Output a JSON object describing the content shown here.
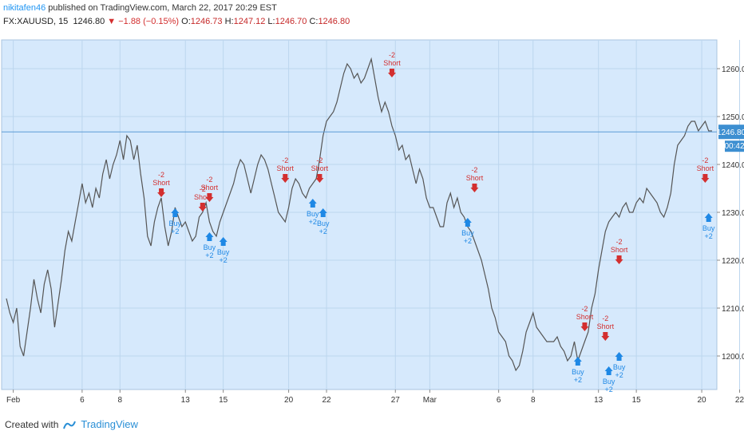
{
  "header": {
    "author": "nikitafen46",
    "published_text": "published on TradingView.com, March 22, 2017 20:29 EST"
  },
  "ticker": {
    "symbol": "FX:XAUUSD, 15",
    "last": "1246.80",
    "change": "−1.88",
    "change_pct": "(−0.15%)",
    "open_label": "O:",
    "open": "1246.73",
    "high_label": "H:",
    "high": "1247.12",
    "low_label": "L:",
    "low": "1246.70",
    "close_label": "C:",
    "close": "1246.80"
  },
  "price_badge": {
    "value": "1246.80",
    "countdown": "00:42"
  },
  "footer": {
    "created_with": "Created with",
    "brand": "TradingView"
  },
  "colors": {
    "plot_bg": "#d6e9fc",
    "grid": "#bcd6ee",
    "candle": "#555555",
    "short": "#d32f2f",
    "buy": "#1e88e5",
    "price_line": "#5b9bd5",
    "badge": "#3d8fd1"
  },
  "chart_data": {
    "type": "line",
    "ylim": [
      1193,
      1266
    ],
    "y_ticks": [
      "1200.00",
      "1210.00",
      "1220.00",
      "1230.00",
      "1240.00",
      "1250.00",
      "1260.00"
    ],
    "y_tick_values": [
      1200,
      1210,
      1220,
      1230,
      1240,
      1250,
      1260
    ],
    "x_ticks": [
      "Feb",
      "6",
      "8",
      "13",
      "15",
      "20",
      "22",
      "27",
      "Mar",
      "6",
      "8",
      "13",
      "15",
      "20",
      "22"
    ],
    "x_tick_index": [
      2,
      22,
      33,
      52,
      63,
      82,
      93,
      113,
      123,
      143,
      153,
      172,
      183,
      202,
      213
    ],
    "last_price": 1246.8,
    "series": [
      {
        "values": [
          1212,
          1209,
          1207,
          1210,
          1202,
          1200,
          1205,
          1210,
          1216,
          1212,
          1209,
          1215,
          1218,
          1214,
          1206,
          1211,
          1216,
          1222,
          1226,
          1224,
          1228,
          1232,
          1236,
          1232,
          1234,
          1231,
          1235,
          1233,
          1238,
          1241,
          1237,
          1240,
          1242,
          1245,
          1241,
          1246,
          1245,
          1241,
          1244,
          1238,
          1233,
          1225,
          1223,
          1228,
          1231,
          1233,
          1227,
          1223,
          1226,
          1231,
          1229,
          1227,
          1228,
          1226,
          1224,
          1225,
          1229,
          1230,
          1232,
          1228,
          1226,
          1225,
          1228,
          1230,
          1232,
          1234,
          1236,
          1239,
          1241,
          1240,
          1237,
          1234,
          1237,
          1240,
          1242,
          1241,
          1239,
          1236,
          1233,
          1230,
          1229,
          1228,
          1231,
          1235,
          1237,
          1236,
          1234,
          1233,
          1235,
          1236,
          1237,
          1241,
          1246,
          1249,
          1250,
          1251,
          1253,
          1256,
          1259,
          1261,
          1260,
          1258,
          1259,
          1257,
          1258,
          1260,
          1262,
          1258,
          1254,
          1251,
          1253,
          1251,
          1248,
          1246,
          1243,
          1244,
          1241,
          1242,
          1239,
          1236,
          1239,
          1237,
          1233,
          1231,
          1231,
          1229,
          1227,
          1227,
          1232,
          1234,
          1231,
          1233,
          1230,
          1229,
          1227,
          1226,
          1224,
          1222,
          1220,
          1217,
          1214,
          1210,
          1208,
          1205,
          1204,
          1203,
          1200,
          1199,
          1197,
          1198,
          1201,
          1205,
          1207,
          1209,
          1206,
          1205,
          1204,
          1203,
          1203,
          1203,
          1204,
          1202,
          1201,
          1199,
          1200,
          1203,
          1199,
          1201,
          1203,
          1205,
          1210,
          1213,
          1218,
          1222,
          1226,
          1228,
          1229,
          1230,
          1229,
          1231,
          1232,
          1230,
          1230,
          1232,
          1233,
          1232,
          1235,
          1234,
          1233,
          1232,
          1230,
          1229,
          1231,
          1234,
          1240,
          1244,
          1245,
          1246,
          1248,
          1249,
          1249,
          1247,
          1248,
          1249,
          1247,
          1247
        ]
      }
    ],
    "annotations": [
      {
        "label": "-2",
        "text": "Short",
        "type": "short",
        "index": 45,
        "price": 1233
      },
      {
        "label": "Buy",
        "text": "+2",
        "type": "buy",
        "index": 49,
        "price": 1231
      },
      {
        "label": "-2",
        "text": "Short",
        "type": "short",
        "index": 57,
        "price": 1230
      },
      {
        "label": "-2",
        "text": "Short",
        "type": "short",
        "index": 59,
        "price": 1232
      },
      {
        "label": "Buy",
        "text": "+2",
        "type": "buy",
        "index": 59,
        "price": 1226
      },
      {
        "label": "Buy",
        "text": "+2",
        "type": "buy",
        "index": 63,
        "price": 1225
      },
      {
        "label": "-2",
        "text": "Short",
        "type": "short",
        "index": 81,
        "price": 1236
      },
      {
        "label": "Buy",
        "text": "+2",
        "type": "buy",
        "index": 89,
        "price": 1233
      },
      {
        "label": "-2",
        "text": "Short",
        "type": "short",
        "index": 91,
        "price": 1236
      },
      {
        "label": "Buy",
        "text": "+2",
        "type": "buy",
        "index": 92,
        "price": 1231
      },
      {
        "label": "-2",
        "text": "Short",
        "type": "short",
        "index": 112,
        "price": 1258
      },
      {
        "label": "-2",
        "text": "Short",
        "type": "short",
        "index": 136,
        "price": 1234
      },
      {
        "label": "Buy",
        "text": "+2",
        "type": "buy",
        "index": 134,
        "price": 1229
      },
      {
        "label": "-2",
        "text": "Short",
        "type": "short",
        "index": 168,
        "price": 1205
      },
      {
        "label": "Buy",
        "text": "+2",
        "type": "buy",
        "index": 166,
        "price": 1200
      },
      {
        "label": "-2",
        "text": "Short",
        "type": "short",
        "index": 174,
        "price": 1203
      },
      {
        "label": "Buy",
        "text": "+2",
        "type": "buy",
        "index": 175,
        "price": 1198
      },
      {
        "label": "-2",
        "text": "Short",
        "type": "short",
        "index": 178,
        "price": 1219
      },
      {
        "label": "Buy",
        "text": "+2",
        "type": "buy",
        "index": 178,
        "price": 1201
      },
      {
        "label": "-2",
        "text": "Short",
        "type": "short",
        "index": 203,
        "price": 1236
      },
      {
        "label": "Buy",
        "text": "+2",
        "type": "buy",
        "index": 204,
        "price": 1230
      }
    ]
  }
}
